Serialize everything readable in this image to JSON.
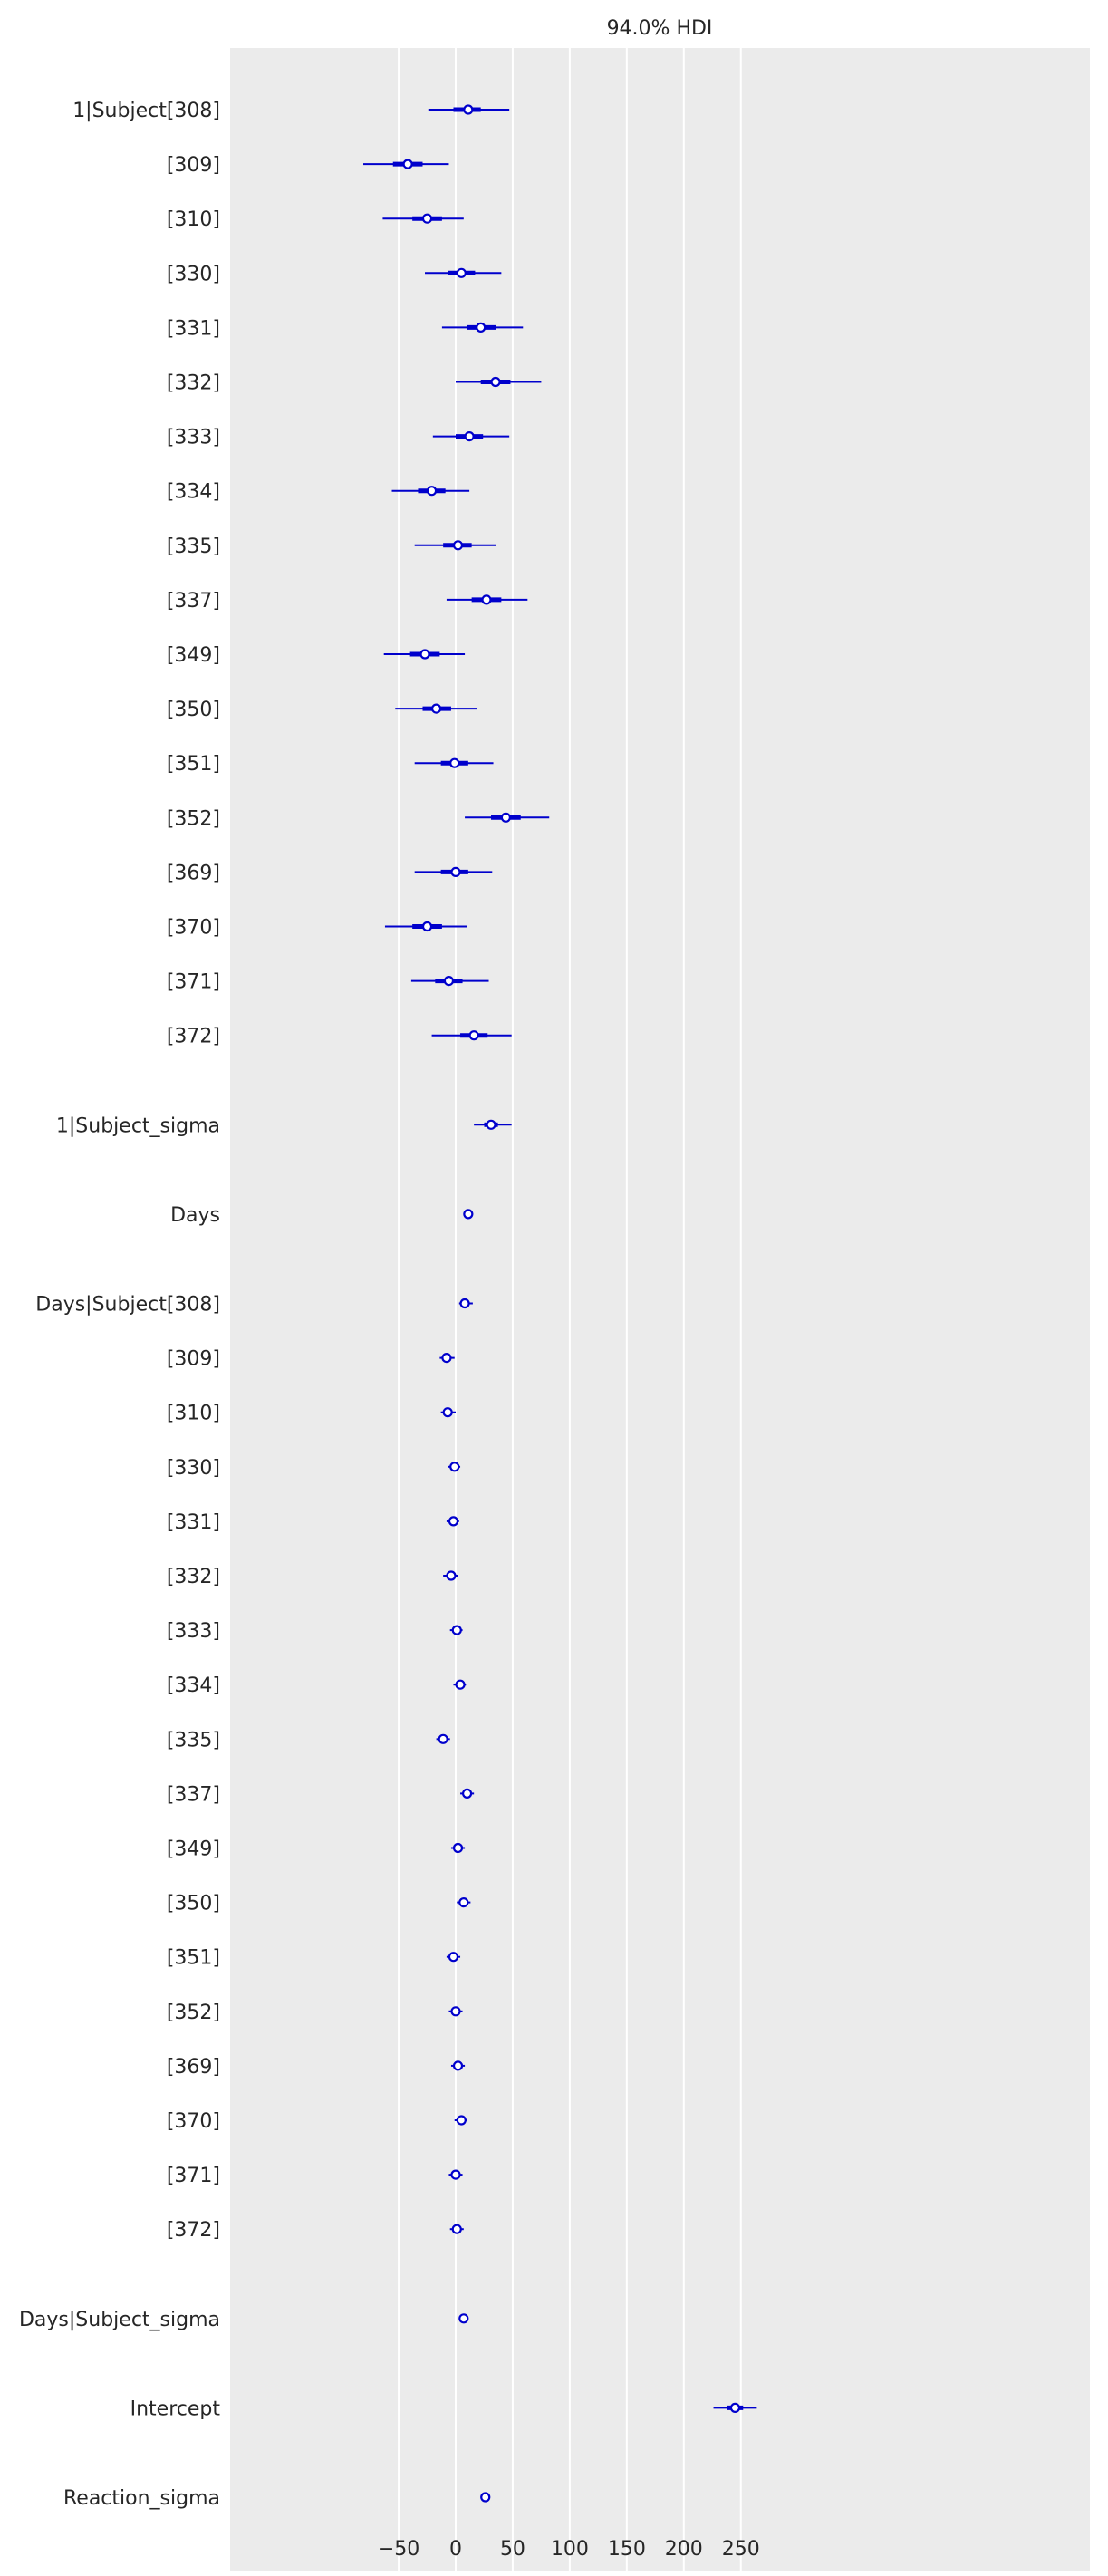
{
  "chart_data": {
    "type": "forest",
    "title": "94.0% HDI",
    "xlabel": "",
    "ylabel": "",
    "xlim": [
      -100,
      280
    ],
    "xticks": [
      -50,
      0,
      50,
      100,
      150,
      200,
      250
    ],
    "xtick_labels": [
      "−50",
      "0",
      "50",
      "100",
      "150",
      "200",
      "250"
    ],
    "grid": true,
    "line_color": "#0000cc",
    "marker_face": "#ffffff",
    "background": "#ebebeb",
    "grid_color": "#ffffff",
    "rows": [
      {
        "label": "1|Subject[308]",
        "hdi": [
          -24,
          47
        ],
        "iqr": [
          -2,
          22
        ],
        "median": 11
      },
      {
        "label": "[309]",
        "hdi": [
          -81,
          -6
        ],
        "iqr": [
          -55,
          -29
        ],
        "median": -42
      },
      {
        "label": "[310]",
        "hdi": [
          -64,
          7
        ],
        "iqr": [
          -38,
          -12
        ],
        "median": -25
      },
      {
        "label": "[330]",
        "hdi": [
          -27,
          40
        ],
        "iqr": [
          -7,
          17
        ],
        "median": 5
      },
      {
        "label": "[331]",
        "hdi": [
          -12,
          59
        ],
        "iqr": [
          10,
          35
        ],
        "median": 22
      },
      {
        "label": "[332]",
        "hdi": [
          0,
          75
        ],
        "iqr": [
          22,
          48
        ],
        "median": 35
      },
      {
        "label": "[333]",
        "hdi": [
          -20,
          47
        ],
        "iqr": [
          0,
          24
        ],
        "median": 12
      },
      {
        "label": "[334]",
        "hdi": [
          -56,
          12
        ],
        "iqr": [
          -33,
          -9
        ],
        "median": -21
      },
      {
        "label": "[335]",
        "hdi": [
          -36,
          35
        ],
        "iqr": [
          -11,
          14
        ],
        "median": 2
      },
      {
        "label": "[337]",
        "hdi": [
          -8,
          63
        ],
        "iqr": [
          14,
          40
        ],
        "median": 27
      },
      {
        "label": "[349]",
        "hdi": [
          -63,
          8
        ],
        "iqr": [
          -40,
          -14
        ],
        "median": -27
      },
      {
        "label": "[350]",
        "hdi": [
          -53,
          19
        ],
        "iqr": [
          -29,
          -4
        ],
        "median": -17
      },
      {
        "label": "[351]",
        "hdi": [
          -36,
          33
        ],
        "iqr": [
          -13,
          11
        ],
        "median": -1
      },
      {
        "label": "[352]",
        "hdi": [
          8,
          82
        ],
        "iqr": [
          31,
          57
        ],
        "median": 44
      },
      {
        "label": "[369]",
        "hdi": [
          -36,
          32
        ],
        "iqr": [
          -13,
          11
        ],
        "median": 0
      },
      {
        "label": "[370]",
        "hdi": [
          -62,
          10
        ],
        "iqr": [
          -38,
          -12
        ],
        "median": -25
      },
      {
        "label": "[371]",
        "hdi": [
          -39,
          29
        ],
        "iqr": [
          -18,
          6
        ],
        "median": -6
      },
      {
        "label": "[372]",
        "hdi": [
          -21,
          49
        ],
        "iqr": [
          4,
          28
        ],
        "median": 16
      },
      {
        "label": "1|Subject_sigma",
        "hdi": [
          16,
          49
        ],
        "iqr": [
          25,
          37
        ],
        "median": 31
      },
      {
        "label": "Days",
        "hdi": [
          8,
          15
        ],
        "iqr": [
          10,
          13
        ],
        "median": 11
      },
      {
        "label": "Days|Subject[308]",
        "hdi": [
          3,
          15
        ],
        "iqr": [
          5,
          11
        ],
        "median": 8
      },
      {
        "label": "[309]",
        "hdi": [
          -14,
          -1
        ],
        "iqr": [
          -10,
          -5
        ],
        "median": -8
      },
      {
        "label": "[310]",
        "hdi": [
          -13,
          0
        ],
        "iqr": [
          -10,
          -4
        ],
        "median": -7
      },
      {
        "label": "[330]",
        "hdi": [
          -7,
          4
        ],
        "iqr": [
          -4,
          2
        ],
        "median": -1
      },
      {
        "label": "[331]",
        "hdi": [
          -8,
          3
        ],
        "iqr": [
          -5,
          1
        ],
        "median": -2
      },
      {
        "label": "[332]",
        "hdi": [
          -11,
          2
        ],
        "iqr": [
          -7,
          -1
        ],
        "median": -4
      },
      {
        "label": "[333]",
        "hdi": [
          -5,
          6
        ],
        "iqr": [
          -2,
          4
        ],
        "median": 1
      },
      {
        "label": "[334]",
        "hdi": [
          -2,
          9
        ],
        "iqr": [
          1,
          6
        ],
        "median": 4
      },
      {
        "label": "[335]",
        "hdi": [
          -17,
          -5
        ],
        "iqr": [
          -14,
          -8
        ],
        "median": -11
      },
      {
        "label": "[337]",
        "hdi": [
          4,
          16
        ],
        "iqr": [
          7,
          13
        ],
        "median": 10
      },
      {
        "label": "[349]",
        "hdi": [
          -4,
          8
        ],
        "iqr": [
          -1,
          5
        ],
        "median": 2
      },
      {
        "label": "[350]",
        "hdi": [
          1,
          13
        ],
        "iqr": [
          4,
          10
        ],
        "median": 7
      },
      {
        "label": "[351]",
        "hdi": [
          -8,
          4
        ],
        "iqr": [
          -5,
          1
        ],
        "median": -2
      },
      {
        "label": "[352]",
        "hdi": [
          -6,
          6
        ],
        "iqr": [
          -3,
          3
        ],
        "median": 0
      },
      {
        "label": "[369]",
        "hdi": [
          -4,
          8
        ],
        "iqr": [
          -1,
          5
        ],
        "median": 2
      },
      {
        "label": "[370]",
        "hdi": [
          -1,
          10
        ],
        "iqr": [
          2,
          7
        ],
        "median": 5
      },
      {
        "label": "[371]",
        "hdi": [
          -6,
          6
        ],
        "iqr": [
          -3,
          3
        ],
        "median": 0
      },
      {
        "label": "[372]",
        "hdi": [
          -5,
          7
        ],
        "iqr": [
          -2,
          4
        ],
        "median": 1
      },
      {
        "label": "Days|Subject_sigma",
        "hdi": [
          4,
          9
        ],
        "iqr": [
          5,
          8
        ],
        "median": 7
      },
      {
        "label": "Intercept",
        "hdi": [
          226,
          264
        ],
        "iqr": [
          238,
          252
        ],
        "median": 245
      },
      {
        "label": "Reaction_sigma",
        "hdi": [
          23,
          29
        ],
        "iqr": [
          25,
          27
        ],
        "median": 26
      }
    ]
  }
}
